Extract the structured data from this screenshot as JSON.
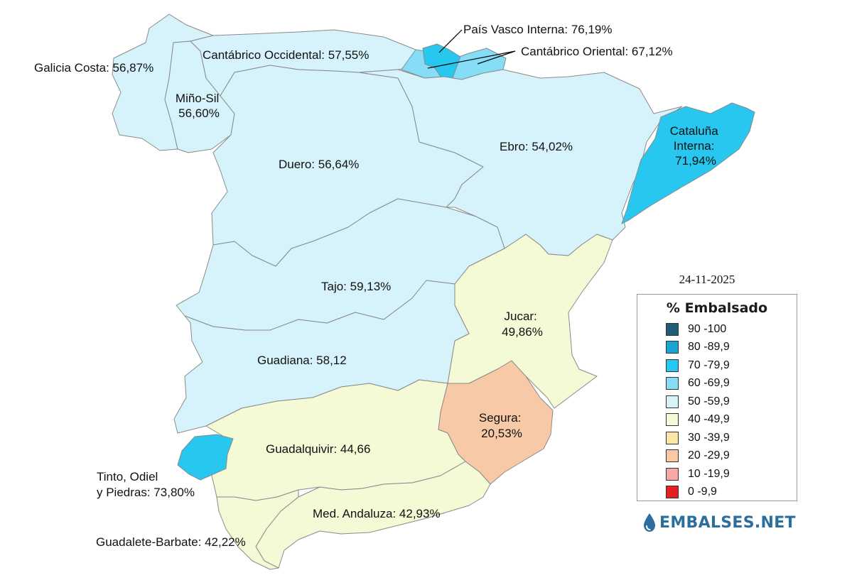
{
  "map": {
    "date": "24-11-2025",
    "basins": [
      {
        "id": "galicia-costa",
        "label": "Galicia Costa: 56,87%",
        "fill": "#d6f3fb"
      },
      {
        "id": "mino-sil",
        "label_lines": [
          "Miño-Sil",
          "56,60%"
        ],
        "fill": "#d6f3fb"
      },
      {
        "id": "cantabrico-occidental",
        "label": "Cantábrico Occidental: 57,55%",
        "fill": "#d6f3fb"
      },
      {
        "id": "pais-vasco-interna",
        "label": "País Vasco Interna: 76,19%",
        "fill": "#27c7ef"
      },
      {
        "id": "cantabrico-oriental",
        "label": "Cantábrico Oriental: 67,12%",
        "fill": "#86def6"
      },
      {
        "id": "duero",
        "label": "Duero: 56,64%",
        "fill": "#d6f3fb"
      },
      {
        "id": "ebro",
        "label": "Ebro: 54,02%",
        "fill": "#d6f3fb"
      },
      {
        "id": "cataluna-interna",
        "label_lines": [
          "Cataluña",
          "Interna:",
          "71,94%"
        ],
        "fill": "#27c7ef"
      },
      {
        "id": "tajo",
        "label": "Tajo: 59,13%",
        "fill": "#d6f3fb"
      },
      {
        "id": "jucar",
        "label_lines": [
          "Jucar:",
          "49,86%"
        ],
        "fill": "#f4f9d6"
      },
      {
        "id": "guadiana",
        "label": "Guadiana: 58,12",
        "fill": "#d6f3fb"
      },
      {
        "id": "segura",
        "label_lines": [
          "Segura:",
          "20,53%"
        ],
        "fill": "#f8c9a6"
      },
      {
        "id": "guadalquivir",
        "label": "Guadalquivir: 44,66",
        "fill": "#f4f9d6"
      },
      {
        "id": "tinto-odiel-piedras",
        "label_lines": [
          "Tinto, Odiel",
          "y Piedras: 73,80%"
        ],
        "fill": "#27c7ef"
      },
      {
        "id": "med-andaluza",
        "label": "Med. Andaluza: 42,93%",
        "fill": "#f4f9d6"
      },
      {
        "id": "guadalete-barbate",
        "label": "Guadalete-Barbate: 42,22%",
        "fill": "#f4f9d6"
      }
    ]
  },
  "legend": {
    "title": "% Embalsado",
    "items": [
      {
        "label": "90 -100",
        "color": "#1f5e75"
      },
      {
        "label": "80 -89,9",
        "color": "#1aa4d1"
      },
      {
        "label": "70 -79,9",
        "color": "#27c7ef"
      },
      {
        "label": "60 -69,9",
        "color": "#86def6"
      },
      {
        "label": "50 -59,9",
        "color": "#d6f3fb"
      },
      {
        "label": "40 -49,9",
        "color": "#f4f9d6"
      },
      {
        "label": "30 -39,9",
        "color": "#fbe7a3"
      },
      {
        "label": "20 -29,9",
        "color": "#f8c9a6"
      },
      {
        "label": "10 -19,9",
        "color": "#f7a8a8"
      },
      {
        "label": "0 -9,9",
        "color": "#e62020"
      }
    ]
  },
  "brand": {
    "text": "EMBALSES.NET",
    "icon": "water-drop-icon",
    "color": "#2c6f9f"
  }
}
